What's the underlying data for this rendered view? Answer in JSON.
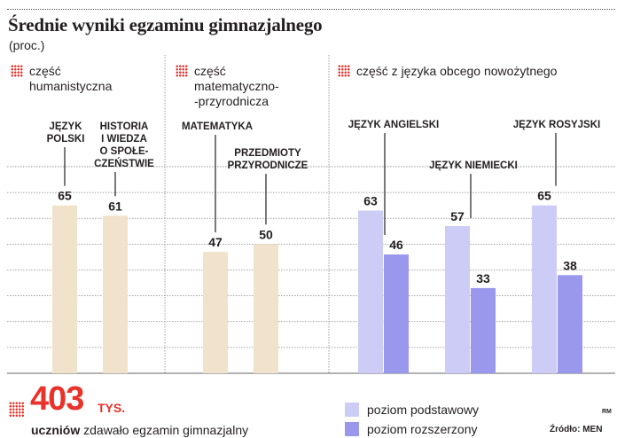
{
  "title": "Średnie wyniki egzaminu gimnazjalnego",
  "subtitle": "(proc.)",
  "sections": [
    {
      "lines": [
        "część",
        "humanistyczna"
      ]
    },
    {
      "lines": [
        "część",
        "matematyczno-",
        "-przyrodnicza"
      ]
    },
    {
      "lines": [
        "część z języka obcego nowożytnego"
      ]
    }
  ],
  "chart_data": {
    "type": "bar",
    "title": "Średnie wyniki egzaminu gimnazjalnego",
    "ylabel": "(proc.)",
    "ylim": [
      0,
      90
    ],
    "grid": true,
    "legend_position": "bottom-right",
    "groups": [
      {
        "section": "część humanistyczna",
        "category": "JĘZYK POLSKI",
        "label_lines": [
          "JĘZYK",
          "POLSKI"
        ],
        "values": [
          65
        ],
        "levels": [
          "podstawowy"
        ]
      },
      {
        "section": "część humanistyczna",
        "category": "HISTORIA I WIEDZA O SPOŁECZEŃSTWIE",
        "label_lines": [
          "HISTORIA",
          "I WIEDZA",
          "O SPOŁE-",
          "CZEŃSTWIE"
        ],
        "values": [
          61
        ],
        "levels": [
          "podstawowy"
        ]
      },
      {
        "section": "część matematyczno-przyrodnicza",
        "category": "MATEMATYKA",
        "label_lines": [
          "MATEMATYKA"
        ],
        "values": [
          47
        ],
        "levels": [
          "podstawowy"
        ]
      },
      {
        "section": "część matematyczno-przyrodnicza",
        "category": "PRZEDMIOTY PRZYRODNICZE",
        "label_lines": [
          "PRZEDMIOTY",
          "PRZYRODNICZE"
        ],
        "values": [
          50
        ],
        "levels": [
          "podstawowy"
        ]
      },
      {
        "section": "część z języka obcego nowożytnego",
        "category": "JĘZYK ANGIELSKI",
        "label_lines": [
          "JĘZYK ANGIELSKI"
        ],
        "values": [
          63,
          46
        ],
        "levels": [
          "podstawowy",
          "rozszerzony"
        ]
      },
      {
        "section": "część z języka obcego nowożytnego",
        "category": "JĘZYK NIEMIECKI",
        "label_lines": [
          "JĘZYK NIEMIECKI"
        ],
        "values": [
          57,
          33
        ],
        "levels": [
          "podstawowy",
          "rozszerzony"
        ]
      },
      {
        "section": "część z języka obcego nowożytnego",
        "category": "JĘZYK ROSYJSKI",
        "label_lines": [
          "JĘZYK ROSYJSKI"
        ],
        "values": [
          65,
          38
        ],
        "levels": [
          "podstawowy",
          "rozszerzony"
        ]
      }
    ],
    "legend": [
      {
        "name": "poziom podstawowy",
        "color": "#ccccf7"
      },
      {
        "name": "poziom rozszerzony",
        "color": "#9a98ec"
      }
    ]
  },
  "colors": {
    "bar_humanities_math": "#f0e2cb",
    "bar_language_basic": "#ccccf7",
    "bar_language_extended": "#9a98ec",
    "accent": "#e8322a"
  },
  "stat": {
    "number": "403",
    "unit": "TYS.",
    "desc_bold": "uczniów",
    "desc_rest": " zdawało egzamin gimnazjalny"
  },
  "rm": "RM",
  "source": "Źródło: MEN"
}
